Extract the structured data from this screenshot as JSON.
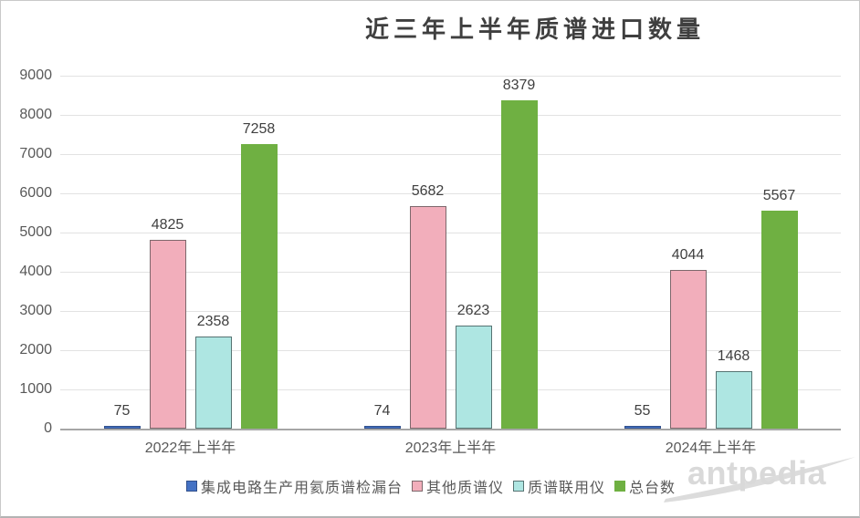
{
  "title": "近三年上半年质谱进口数量",
  "watermark": {
    "text": "antpedia",
    "color": "#d9d9d9"
  },
  "chart_data": {
    "type": "bar",
    "title": "近三年上半年质谱进口数量",
    "categories": [
      "2022年上半年",
      "2023年上半年",
      "2024年上半年"
    ],
    "series": [
      {
        "name": "集成电路生产用氦质谱检漏台",
        "values": [
          75,
          74,
          55
        ],
        "fill": "#4472c4",
        "border": "#31508c"
      },
      {
        "name": "其他质谱仪",
        "values": [
          4825,
          5682,
          4044
        ],
        "fill": "#f2aebb",
        "border": "#7d686c"
      },
      {
        "name": "质谱联用仪",
        "values": [
          2358,
          2623,
          1468
        ],
        "fill": "#aee6e2",
        "border": "#567372"
      },
      {
        "name": "总台数",
        "values": [
          7258,
          8379,
          5567
        ],
        "fill": "#6fb042",
        "border": "#6fb042"
      }
    ],
    "ylim": [
      0,
      9000
    ],
    "ytick_step": 1000,
    "yticks": [
      0,
      1000,
      2000,
      3000,
      4000,
      5000,
      6000,
      7000,
      8000,
      9000
    ],
    "grid": true,
    "gridline_color": "#e2e2e2",
    "baseline_color": "#a6a6a6",
    "axis_text_color": "#595959",
    "data_label_color": "#3f3f3f",
    "data_labels": true,
    "legend_position": "bottom"
  }
}
